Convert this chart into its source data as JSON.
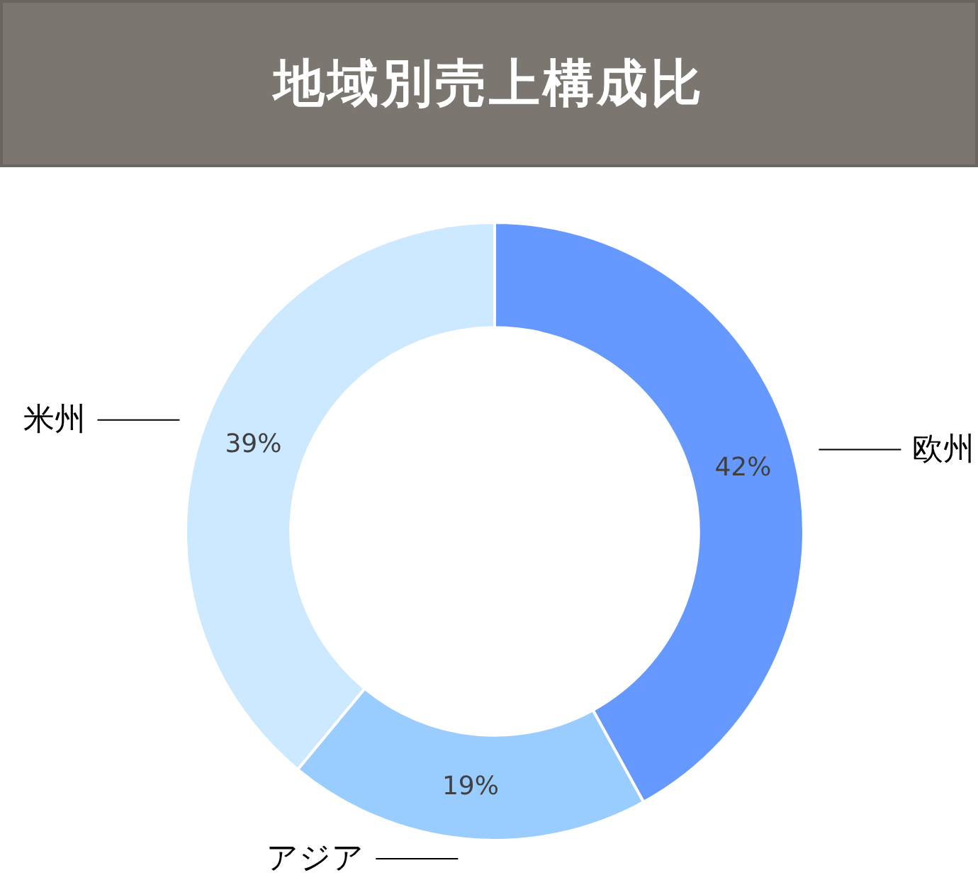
{
  "chart_data": {
    "type": "donut",
    "title": "地域別売上構成比",
    "categories": [
      "欧州",
      "アジア",
      "米州"
    ],
    "values": [
      42,
      19,
      39
    ],
    "value_labels": [
      "42%",
      "19%",
      "39%"
    ],
    "colors": [
      "#6699ff",
      "#99ccff",
      "#cce9ff"
    ],
    "legend": false
  }
}
